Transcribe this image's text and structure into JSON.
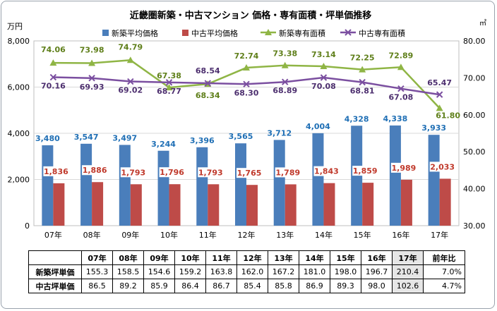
{
  "chart_data": {
    "type": "bar+line",
    "title": "近畿圏新築・中古マンション 価格・専有面積・坪単価推移",
    "unit_left": "万円",
    "unit_right": "㎡",
    "categories": [
      "07年",
      "08年",
      "09年",
      "10年",
      "11年",
      "12年",
      "13年",
      "14年",
      "15年",
      "16年",
      "17年"
    ],
    "y_left": {
      "min": 0,
      "max": 8000,
      "ticks": [
        "0",
        "2,000",
        "4,000",
        "6,000",
        "8,000"
      ]
    },
    "y_right": {
      "min": 30,
      "max": 80,
      "ticks": [
        "30.00",
        "40.00",
        "50.00",
        "60.00",
        "70.00",
        "80.00"
      ]
    },
    "series": [
      {
        "name": "新築平均価格",
        "type": "bar",
        "axis": "left",
        "color": "#4a7ebb",
        "label_color": "#1f6fb5",
        "values": [
          3480,
          3547,
          3497,
          3244,
          3396,
          3565,
          3712,
          4004,
          4328,
          4338,
          3933
        ],
        "labels": [
          "3,480",
          "3,547",
          "3,497",
          "3,244",
          "3,396",
          "3,565",
          "3,712",
          "4,004",
          "4,328",
          "4,338",
          "3,933"
        ]
      },
      {
        "name": "中古平均価格",
        "type": "bar",
        "axis": "left",
        "color": "#be4b48",
        "label_color": "#c0392b",
        "values": [
          1836,
          1886,
          1793,
          1796,
          1793,
          1765,
          1789,
          1843,
          1859,
          1989,
          2033
        ],
        "labels": [
          "1,836",
          "1,886",
          "1,793",
          "1,796",
          "1,793",
          "1,765",
          "1,789",
          "1,843",
          "1,859",
          "1,989",
          "2,033"
        ]
      },
      {
        "name": "新築専有面積",
        "type": "line",
        "axis": "right",
        "color": "#8fb545",
        "label_color": "#5f7f1a",
        "marker": "triangle",
        "values": [
          74.06,
          73.98,
          74.79,
          67.38,
          68.34,
          72.74,
          73.38,
          73.14,
          72.25,
          72.89,
          61.8
        ],
        "labels": [
          "74.06",
          "73.98",
          "74.79",
          "67.38",
          "68.34",
          "72.74",
          "73.38",
          "73.14",
          "72.25",
          "72.89",
          "61.80"
        ]
      },
      {
        "name": "中古専有面積",
        "type": "line",
        "axis": "right",
        "color": "#7b4fa0",
        "label_color": "#4d2f6f",
        "marker": "x",
        "values": [
          70.16,
          69.93,
          69.02,
          68.77,
          68.54,
          68.3,
          68.89,
          70.08,
          68.81,
          67.08,
          65.47
        ],
        "labels": [
          "70.16",
          "69.93",
          "69.02",
          "68.77",
          "68.54",
          "68.30",
          "68.89",
          "70.08",
          "68.81",
          "67.08",
          "65.47"
        ]
      }
    ]
  },
  "table": {
    "headers": [
      "07年",
      "08年",
      "09年",
      "10年",
      "11年",
      "12年",
      "13年",
      "14年",
      "15年",
      "16年",
      "17年",
      "前年比"
    ],
    "rows": [
      {
        "label": "新築坪単価",
        "values": [
          "155.3",
          "158.5",
          "154.6",
          "159.2",
          "163.8",
          "162.0",
          "167.2",
          "181.0",
          "198.0",
          "196.7",
          "210.4"
        ],
        "ratio": "7.0%"
      },
      {
        "label": "中古坪単価",
        "values": [
          "86.5",
          "89.2",
          "85.9",
          "86.4",
          "86.7",
          "85.4",
          "85.8",
          "86.9",
          "89.3",
          "98.0",
          "102.6"
        ],
        "ratio": "4.7%"
      }
    ]
  }
}
